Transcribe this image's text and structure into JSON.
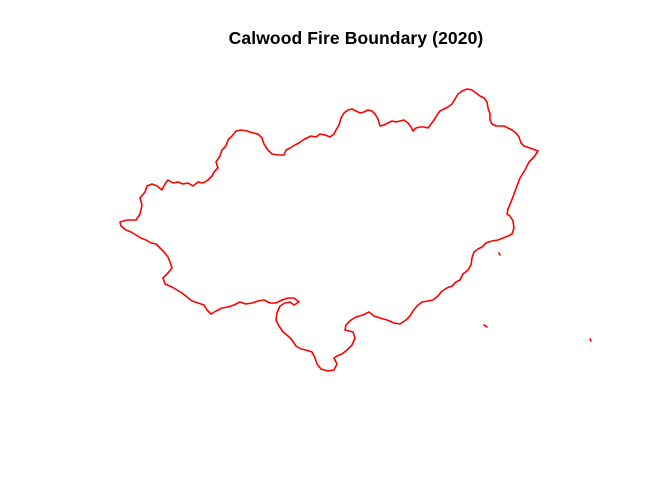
{
  "map": {
    "title": "Calwood Fire Boundary (2020)",
    "feature": "fire-perimeter",
    "stroke_color": "#ff0000",
    "background_color": "#ffffff",
    "grid": false,
    "axes": false
  }
}
